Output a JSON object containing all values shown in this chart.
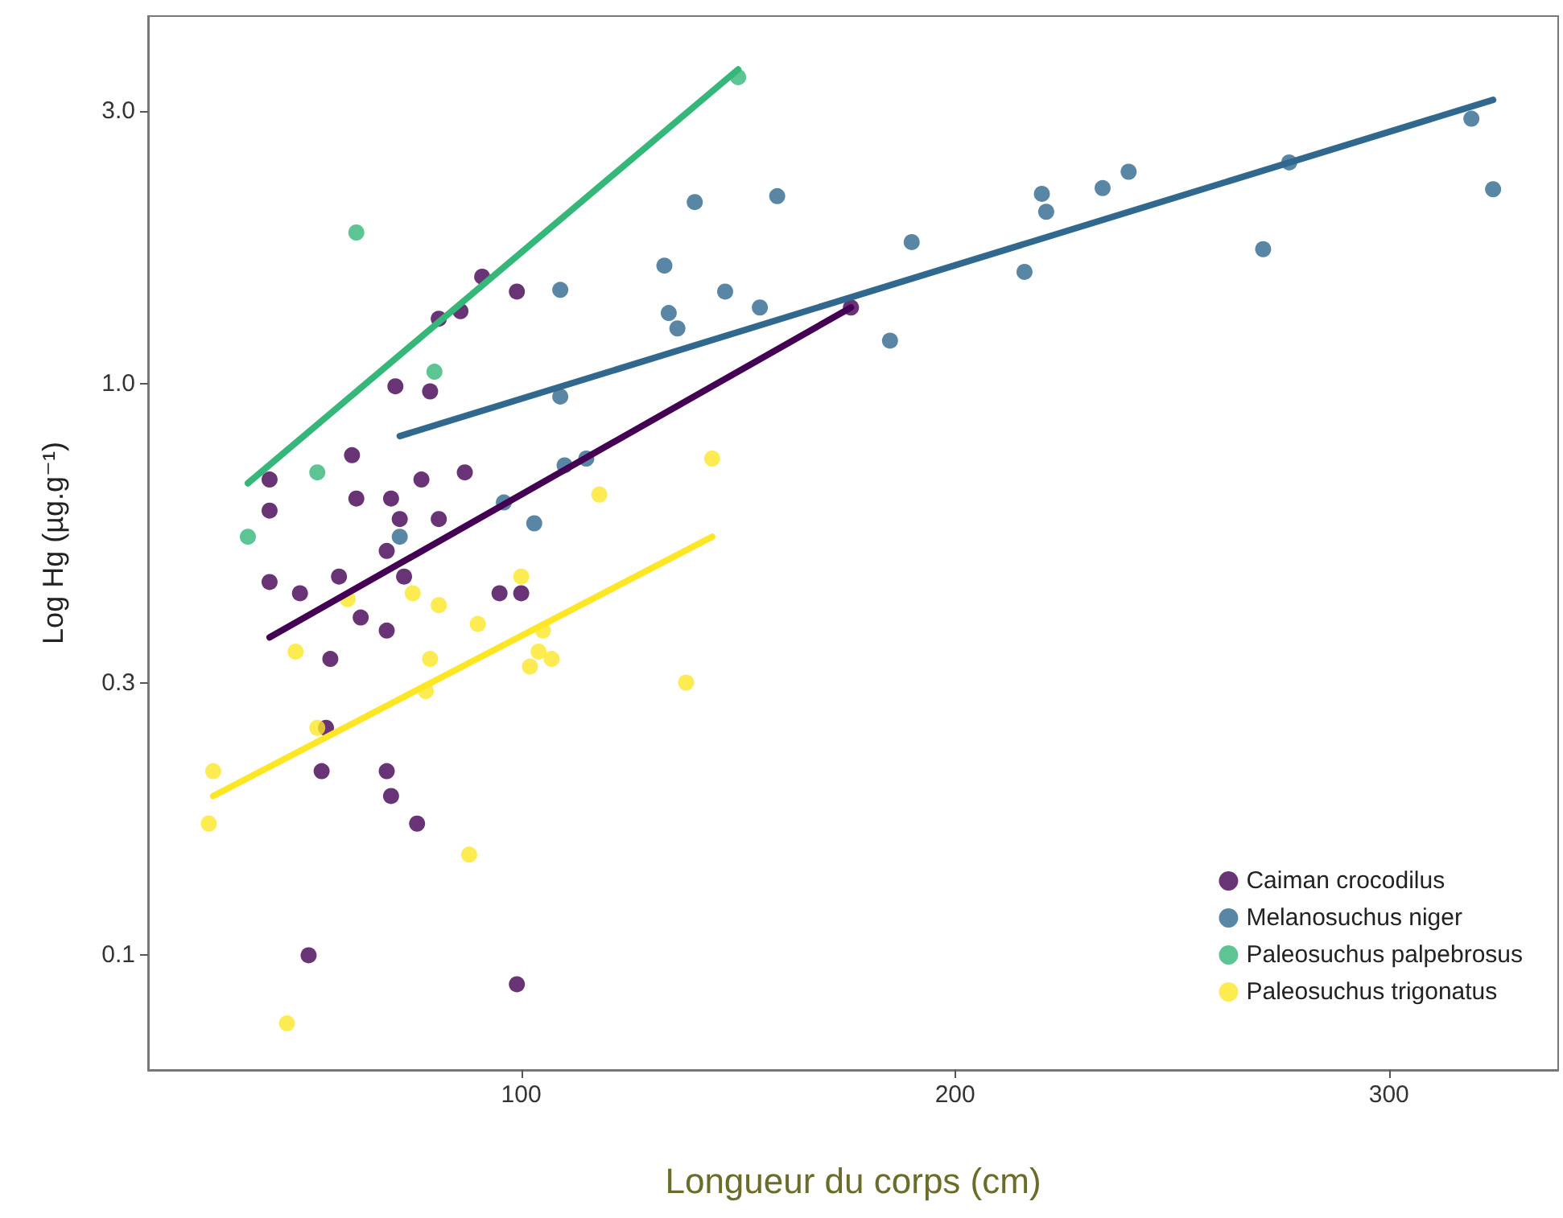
{
  "chart_data": {
    "type": "scatter",
    "xlabel": "Longueur du corps (cm)",
    "ylabel": "Log Hg (µg.g⁻¹)",
    "xlim": [
      14,
      339
    ],
    "xticks": [
      100,
      200,
      300
    ],
    "ylim": [
      0.063,
      4.4
    ],
    "yticks": [
      {
        "value": 0.1,
        "label": "0.1"
      },
      {
        "value": 0.3,
        "label": "0.3"
      },
      {
        "value": 1,
        "label": "1.0"
      },
      {
        "value": 3,
        "label": "3.0"
      }
    ],
    "log": "y",
    "grid": false,
    "legend": "bottom right",
    "marker": "circle",
    "series": [
      {
        "name": "Caiman crocodilus",
        "color": "#440154",
        "x": [
          42,
          42,
          42,
          49,
          58,
          69,
          73,
          63,
          69,
          56,
          55,
          54,
          69,
          70,
          76,
          51,
          99,
          95,
          100,
          61,
          62,
          70,
          72,
          77,
          81,
          87,
          71,
          79,
          81,
          86,
          91,
          99,
          176
        ],
        "values": [
          0.68,
          0.6,
          0.45,
          0.43,
          0.46,
          0.51,
          0.46,
          0.39,
          0.37,
          0.33,
          0.25,
          0.21,
          0.21,
          0.19,
          0.17,
          0.1,
          0.089,
          0.43,
          0.43,
          0.75,
          0.63,
          0.63,
          0.58,
          0.68,
          0.58,
          0.7,
          0.99,
          0.97,
          1.3,
          1.34,
          1.54,
          1.45,
          1.36
        ]
      },
      {
        "name": "Melanosuchus niger",
        "color": "#31688e",
        "x": [
          72,
          96,
          103,
          109,
          110,
          115,
          109,
          133,
          140,
          159,
          134,
          136,
          147,
          155,
          185,
          190,
          216,
          220,
          221,
          234,
          240,
          271,
          277,
          319,
          324
        ],
        "values": [
          0.54,
          0.62,
          0.57,
          0.95,
          0.72,
          0.74,
          1.46,
          1.61,
          2.08,
          2.13,
          1.33,
          1.25,
          1.45,
          1.36,
          1.19,
          1.77,
          1.57,
          2.15,
          2.0,
          2.2,
          2.35,
          1.72,
          2.44,
          2.91,
          2.19
        ]
      },
      {
        "name": "Paleosuchus palpebrosus",
        "color": "#35b779",
        "x": [
          37,
          53,
          62,
          80,
          150
        ],
        "values": [
          0.54,
          0.7,
          1.84,
          1.05,
          3.44
        ]
      },
      {
        "name": "Paleosuchus trigonatus",
        "color": "#fde725",
        "x": [
          29,
          28,
          46,
          48,
          53,
          60,
          75,
          81,
          90,
          79,
          78,
          88,
          100,
          105,
          102,
          104,
          107,
          118,
          144,
          138
        ],
        "values": [
          0.21,
          0.17,
          0.076,
          0.34,
          0.25,
          0.42,
          0.43,
          0.41,
          0.38,
          0.33,
          0.29,
          0.15,
          0.46,
          0.37,
          0.32,
          0.34,
          0.33,
          0.64,
          0.74,
          0.3
        ]
      },
      {
        "type": "line",
        "marker": "none",
        "color": "#440154",
        "x": [
          42,
          176
        ],
        "values": [
          0.36,
          1.36
        ]
      },
      {
        "type": "line",
        "marker": "none",
        "color": "#31688e",
        "x": [
          72,
          324
        ],
        "values": [
          0.81,
          3.14
        ]
      },
      {
        "type": "line",
        "marker": "none",
        "color": "#35b779",
        "x": [
          37,
          150
        ],
        "values": [
          0.67,
          3.55
        ]
      },
      {
        "type": "line",
        "marker": "none",
        "color": "#fde725",
        "x": [
          29,
          144
        ],
        "values": [
          0.19,
          0.54
        ]
      }
    ]
  }
}
